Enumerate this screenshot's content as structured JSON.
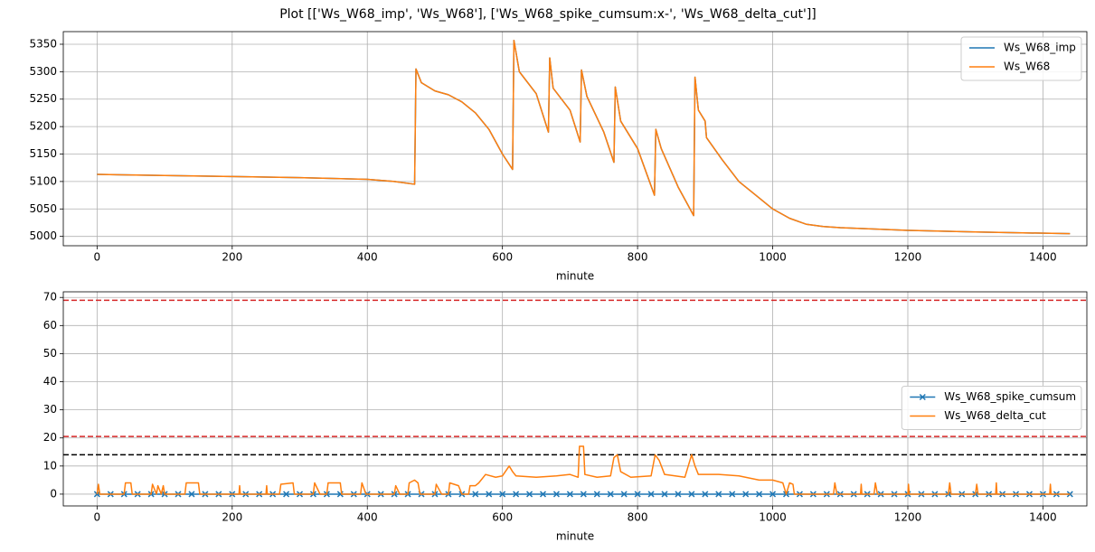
{
  "title": "Plot [['Ws_W68_imp', 'Ws_W68'], ['Ws_W68_spike_cumsum:x-', 'Ws_W68_delta_cut']]",
  "chart_data": [
    {
      "type": "line",
      "xlabel": "minute",
      "grid": true,
      "legend": "upper right",
      "xlim": [
        -50,
        1465
      ],
      "ylim": [
        4983,
        5373
      ],
      "xticks": [
        0,
        200,
        400,
        600,
        800,
        1000,
        1200,
        1400
      ],
      "yticks": [
        5000,
        5050,
        5100,
        5150,
        5200,
        5250,
        5300,
        5350
      ],
      "series": [
        {
          "name": "Ws_W68_imp",
          "color": "#1f77b4",
          "x": [
            0,
            100,
            200,
            300,
            400,
            440,
            470,
            472,
            480,
            500,
            520,
            540,
            560,
            580,
            600,
            615,
            617,
            625,
            650,
            668,
            670,
            675,
            700,
            715,
            717,
            725,
            750,
            765,
            767,
            775,
            800,
            825,
            827,
            835,
            860,
            883,
            885,
            890,
            900,
            902,
            925,
            950,
            975,
            1000,
            1025,
            1050,
            1075,
            1100,
            1200,
            1300,
            1440
          ],
          "values": [
            5113,
            5111,
            5109,
            5107,
            5104,
            5100,
            5095,
            5305,
            5280,
            5265,
            5258,
            5245,
            5225,
            5195,
            5150,
            5122,
            5357,
            5300,
            5260,
            5190,
            5325,
            5270,
            5230,
            5172,
            5303,
            5255,
            5190,
            5135,
            5272,
            5210,
            5160,
            5075,
            5195,
            5160,
            5090,
            5038,
            5290,
            5230,
            5210,
            5180,
            5140,
            5100,
            5075,
            5050,
            5033,
            5022,
            5018,
            5016,
            5011,
            5008,
            5005
          ]
        },
        {
          "name": "Ws_W68",
          "color": "#ff7f0e",
          "x": [
            0,
            100,
            200,
            300,
            400,
            440,
            470,
            472,
            480,
            500,
            520,
            540,
            560,
            580,
            600,
            615,
            617,
            625,
            650,
            668,
            670,
            675,
            700,
            715,
            717,
            725,
            750,
            765,
            767,
            775,
            800,
            825,
            827,
            835,
            860,
            883,
            885,
            890,
            900,
            902,
            925,
            950,
            975,
            1000,
            1025,
            1050,
            1075,
            1100,
            1200,
            1300,
            1440
          ],
          "values": [
            5113,
            5111,
            5109,
            5107,
            5104,
            5100,
            5095,
            5305,
            5280,
            5265,
            5258,
            5245,
            5225,
            5195,
            5150,
            5122,
            5357,
            5300,
            5260,
            5190,
            5325,
            5270,
            5230,
            5172,
            5303,
            5255,
            5190,
            5135,
            5272,
            5210,
            5160,
            5075,
            5195,
            5160,
            5090,
            5038,
            5290,
            5230,
            5210,
            5180,
            5140,
            5100,
            5075,
            5050,
            5033,
            5022,
            5018,
            5016,
            5011,
            5008,
            5005
          ]
        }
      ]
    },
    {
      "type": "line",
      "xlabel": "minute",
      "grid": true,
      "legend": "center right",
      "xlim": [
        -50,
        1465
      ],
      "ylim": [
        -4.2,
        72
      ],
      "xticks": [
        0,
        200,
        400,
        600,
        800,
        1000,
        1200,
        1400
      ],
      "yticks": [
        0,
        10,
        20,
        30,
        40,
        50,
        60,
        70
      ],
      "hlines": [
        {
          "value": 69,
          "color": "#d62728"
        },
        {
          "value": 20.5,
          "color": "#d62728"
        },
        {
          "value": 14,
          "color": "#000000"
        }
      ],
      "series": [
        {
          "name": "Ws_W68_spike_cumsum",
          "color": "#1f77b4",
          "marker": "x",
          "x": [
            0,
            20,
            40,
            60,
            80,
            100,
            120,
            140,
            160,
            180,
            200,
            220,
            240,
            260,
            280,
            300,
            320,
            340,
            360,
            380,
            400,
            420,
            440,
            460,
            480,
            500,
            520,
            540,
            560,
            580,
            600,
            620,
            640,
            660,
            680,
            700,
            720,
            740,
            760,
            780,
            800,
            820,
            840,
            860,
            880,
            900,
            920,
            940,
            960,
            980,
            1000,
            1020,
            1040,
            1060,
            1080,
            1100,
            1120,
            1140,
            1160,
            1180,
            1200,
            1220,
            1240,
            1260,
            1280,
            1300,
            1320,
            1340,
            1360,
            1380,
            1400,
            1420,
            1440
          ],
          "values": [
            0,
            0,
            0,
            0,
            0,
            0,
            0,
            0,
            0,
            0,
            0,
            0,
            0,
            0,
            0,
            0,
            0,
            0,
            0,
            0,
            0,
            0,
            0,
            0,
            0,
            0,
            0,
            0,
            0,
            0,
            0,
            0,
            0,
            0,
            0,
            0,
            0,
            0,
            0,
            0,
            0,
            0,
            0,
            0,
            0,
            0,
            0,
            0,
            0,
            0,
            0,
            0,
            0,
            0,
            0,
            0,
            0,
            0,
            0,
            0,
            0,
            0,
            0,
            0,
            0,
            0,
            0,
            0,
            0,
            0,
            0,
            0,
            0
          ]
        },
        {
          "name": "Ws_W68_delta_cut",
          "color": "#ff7f0e",
          "x": [
            0,
            2,
            4,
            40,
            42,
            50,
            52,
            80,
            82,
            88,
            90,
            95,
            98,
            100,
            130,
            132,
            150,
            152,
            210,
            211,
            212,
            250,
            251,
            252,
            270,
            272,
            290,
            292,
            320,
            322,
            330,
            340,
            342,
            360,
            362,
            390,
            392,
            398,
            440,
            442,
            448,
            460,
            462,
            470,
            475,
            478,
            500,
            502,
            510,
            520,
            522,
            535,
            540,
            550,
            552,
            560,
            565,
            575,
            590,
            600,
            610,
            615,
            620,
            650,
            680,
            700,
            712,
            714,
            720,
            722,
            740,
            760,
            765,
            770,
            775,
            790,
            820,
            826,
            832,
            840,
            870,
            880,
            885,
            890,
            920,
            950,
            980,
            1000,
            1015,
            1020,
            1025,
            1030,
            1032,
            1090,
            1092,
            1095,
            1130,
            1131,
            1132,
            1150,
            1152,
            1155,
            1200,
            1201,
            1202,
            1260,
            1262,
            1264,
            1300,
            1302,
            1304,
            1330,
            1331,
            1332,
            1410,
            1411,
            1412,
            1440
          ],
          "values": [
            0,
            3.5,
            0,
            0,
            4,
            4,
            0,
            0,
            3.5,
            0,
            3,
            0,
            3,
            0,
            0,
            4,
            4,
            0,
            0,
            3,
            0,
            0,
            3,
            0,
            0,
            3.5,
            4,
            0,
            0,
            4,
            0,
            0,
            4,
            4,
            0,
            0,
            4,
            0,
            0,
            3,
            0,
            0,
            4,
            5,
            4,
            0,
            0,
            3.5,
            0,
            0,
            4,
            3,
            0,
            0,
            3,
            3,
            4,
            7,
            6,
            6.5,
            10,
            8,
            6.5,
            6,
            6.5,
            7,
            6,
            17,
            17,
            7,
            6,
            6.5,
            13,
            14,
            8,
            6,
            6.5,
            14,
            12,
            7,
            6,
            14,
            10,
            7,
            7,
            6.5,
            5,
            5,
            4,
            0,
            4,
            3.5,
            0,
            0,
            4,
            0,
            0,
            3.5,
            0,
            0,
            4,
            0,
            0,
            3.5,
            0,
            0,
            4,
            0,
            0,
            3.5,
            0,
            0,
            4,
            0,
            0,
            3.5,
            0,
            0
          ]
        }
      ]
    }
  ]
}
